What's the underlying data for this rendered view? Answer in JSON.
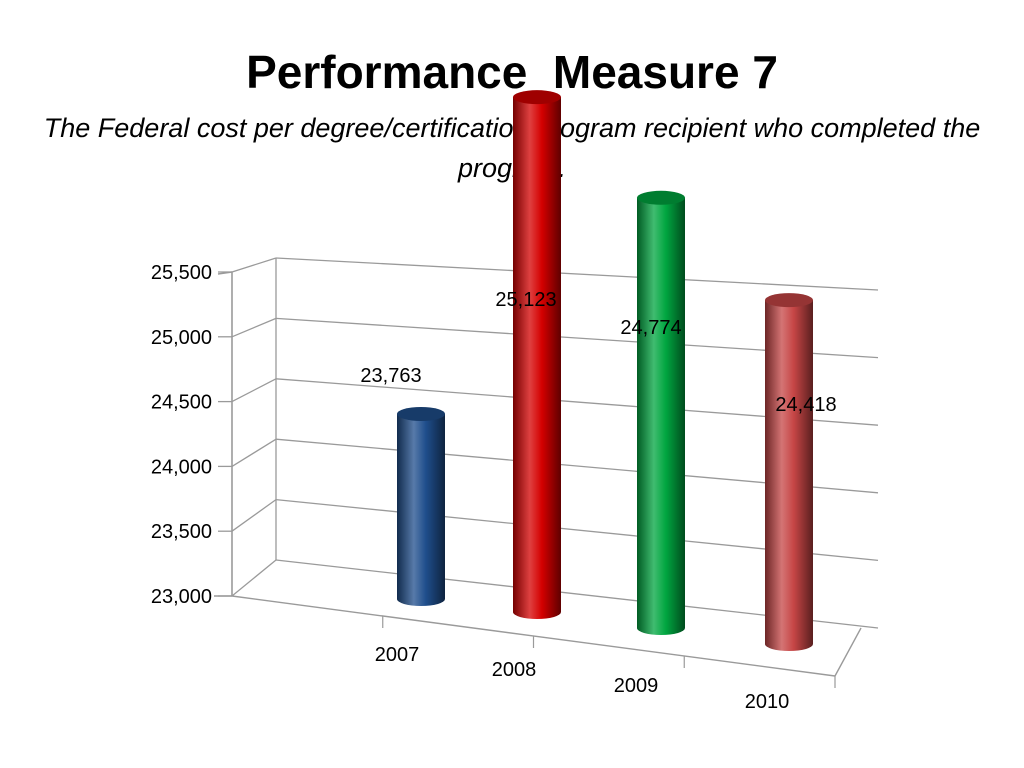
{
  "slide": {
    "title": "Performance  Measure 7",
    "subtitle": "The Federal cost per degree/certification program recipient who completed the program."
  },
  "chart_data": {
    "type": "bar",
    "title": "",
    "xlabel": "",
    "ylabel": "",
    "categories": [
      "2007",
      "2008",
      "2009",
      "2010"
    ],
    "values": [
      23763,
      25123,
      24774,
      24418
    ],
    "data_labels": [
      "23,763",
      "25,123",
      "24,774",
      "24,418"
    ],
    "ylim": [
      23000,
      25500
    ],
    "y_ticks": [
      23000,
      23500,
      24000,
      24500,
      25000,
      25500
    ],
    "y_tick_labels": [
      "23,000",
      "23,500",
      "24,000",
      "24,500",
      "25,000",
      "25,500"
    ],
    "grid": true,
    "legend": "none",
    "style": "3d-cylinder",
    "colors": [
      "#1f4e8c",
      "#d40000",
      "#00a640",
      "#c64545"
    ]
  }
}
